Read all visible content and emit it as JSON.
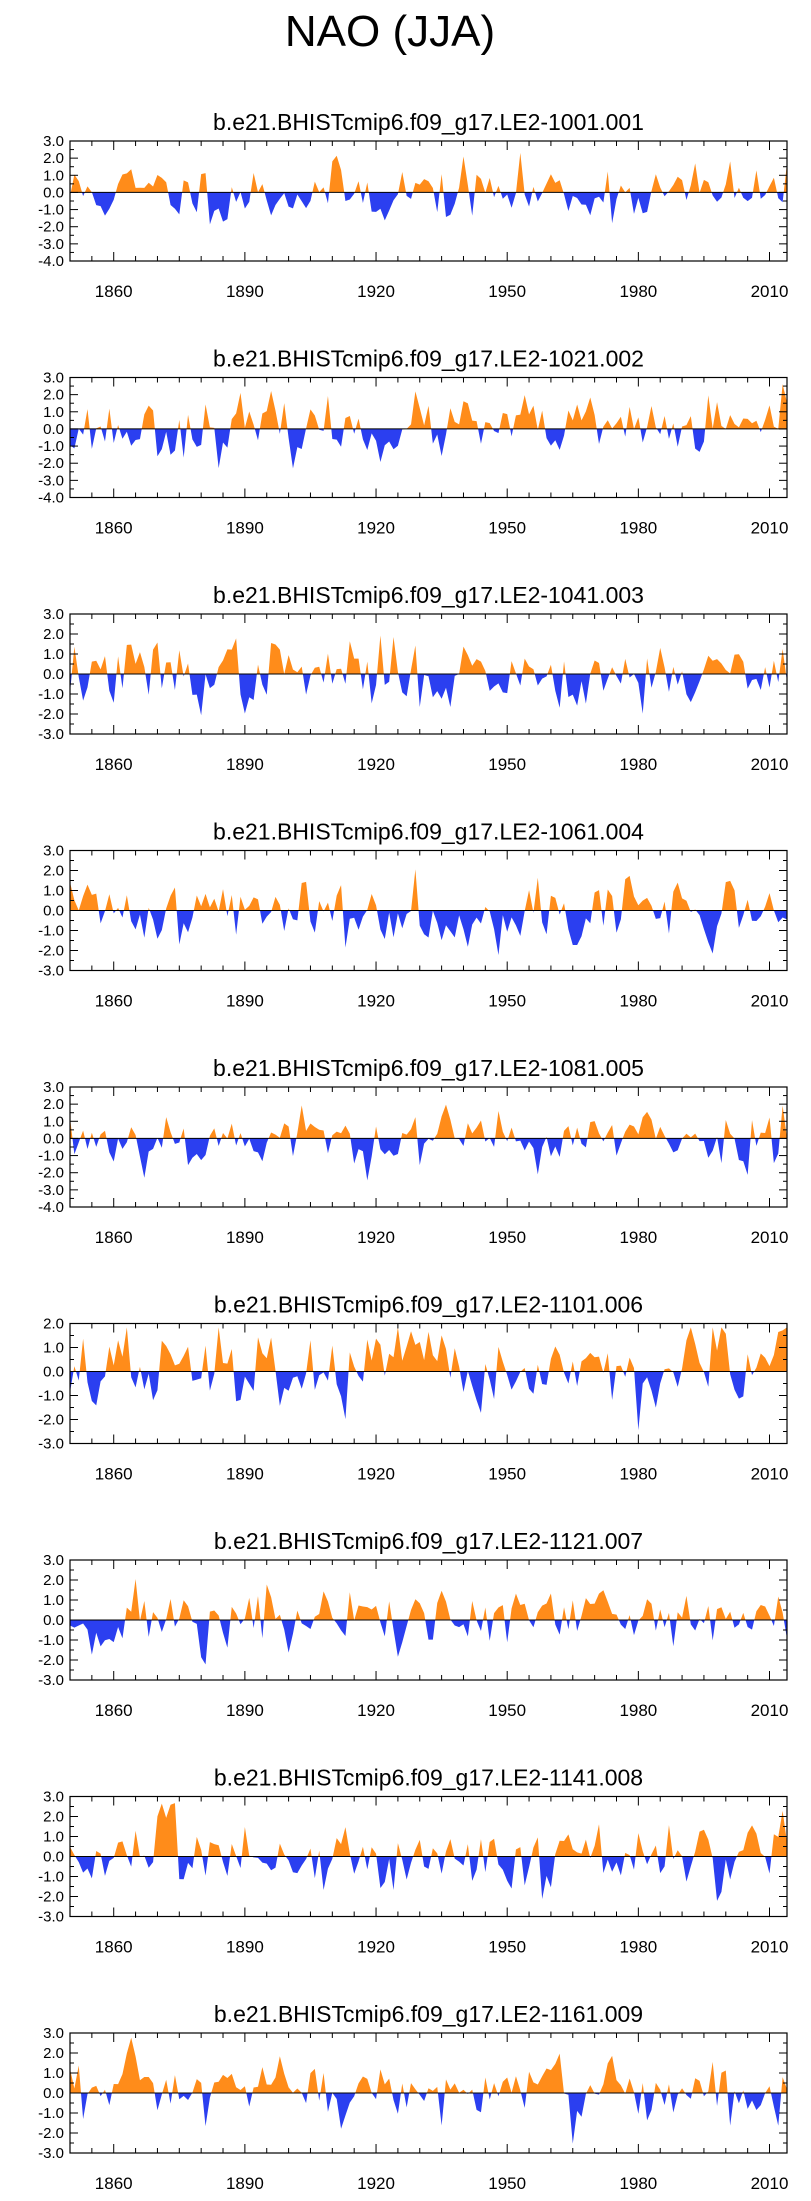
{
  "figure_title": "NAO (JJA)",
  "colors": {
    "positive": "#ff8c1a",
    "negative": "#2b3ff0",
    "axis": "#000000"
  },
  "chart_data": [
    {
      "type": "area",
      "title": "b.e21.BHISTcmip6.f09_g17.LE2-1001.001",
      "ylim": [
        -4.0,
        3.0
      ],
      "yticks": [
        "3.0",
        "2.0",
        "1.0",
        "0.0",
        "-1.0",
        "-2.0",
        "-3.0",
        "-4.0"
      ],
      "xlim": [
        1850,
        2014
      ],
      "xticks": [
        "1860",
        "1890",
        "1920",
        "1950",
        "1980",
        "2010"
      ],
      "x_start": 1850,
      "x_end": 2014,
      "seed": 11
    },
    {
      "type": "area",
      "title": "b.e21.BHISTcmip6.f09_g17.LE2-1021.002",
      "ylim": [
        -4.0,
        3.0
      ],
      "yticks": [
        "3.0",
        "2.0",
        "1.0",
        "0.0",
        "-1.0",
        "-2.0",
        "-3.0",
        "-4.0"
      ],
      "xlim": [
        1850,
        2014
      ],
      "xticks": [
        "1860",
        "1890",
        "1920",
        "1950",
        "1980",
        "2010"
      ],
      "x_start": 1850,
      "x_end": 2014,
      "seed": 23
    },
    {
      "type": "area",
      "title": "b.e21.BHISTcmip6.f09_g17.LE2-1041.003",
      "ylim": [
        -3.0,
        3.0
      ],
      "yticks": [
        "3.0",
        "2.0",
        "1.0",
        "0.0",
        "-1.0",
        "-2.0",
        "-3.0"
      ],
      "xlim": [
        1850,
        2014
      ],
      "xticks": [
        "1860",
        "1890",
        "1920",
        "1950",
        "1980",
        "2010"
      ],
      "x_start": 1850,
      "x_end": 2014,
      "seed": 37
    },
    {
      "type": "area",
      "title": "b.e21.BHISTcmip6.f09_g17.LE2-1061.004",
      "ylim": [
        -3.0,
        3.0
      ],
      "yticks": [
        "3.0",
        "2.0",
        "1.0",
        "0.0",
        "-1.0",
        "-2.0",
        "-3.0"
      ],
      "xlim": [
        1850,
        2014
      ],
      "xticks": [
        "1860",
        "1890",
        "1920",
        "1950",
        "1980",
        "2010"
      ],
      "x_start": 1850,
      "x_end": 2014,
      "seed": 41
    },
    {
      "type": "area",
      "title": "b.e21.BHISTcmip6.f09_g17.LE2-1081.005",
      "ylim": [
        -4.0,
        3.0
      ],
      "yticks": [
        "3.0",
        "2.0",
        "1.0",
        "0.0",
        "-1.0",
        "-2.0",
        "-3.0",
        "-4.0"
      ],
      "xlim": [
        1850,
        2014
      ],
      "xticks": [
        "1860",
        "1890",
        "1920",
        "1950",
        "1980",
        "2010"
      ],
      "x_start": 1850,
      "x_end": 2014,
      "seed": 53
    },
    {
      "type": "area",
      "title": "b.e21.BHISTcmip6.f09_g17.LE2-1101.006",
      "ylim": [
        -3.0,
        2.0
      ],
      "yticks": [
        "2.0",
        "1.0",
        "0.0",
        "-1.0",
        "-2.0",
        "-3.0"
      ],
      "xlim": [
        1850,
        2014
      ],
      "xticks": [
        "1860",
        "1890",
        "1920",
        "1950",
        "1980",
        "2010"
      ],
      "x_start": 1850,
      "x_end": 2014,
      "seed": 67
    },
    {
      "type": "area",
      "title": "b.e21.BHISTcmip6.f09_g17.LE2-1121.007",
      "ylim": [
        -3.0,
        3.0
      ],
      "yticks": [
        "3.0",
        "2.0",
        "1.0",
        "0.0",
        "-1.0",
        "-2.0",
        "-3.0"
      ],
      "xlim": [
        1850,
        2014
      ],
      "xticks": [
        "1860",
        "1890",
        "1920",
        "1950",
        "1980",
        "2010"
      ],
      "x_start": 1850,
      "x_end": 2014,
      "seed": 71
    },
    {
      "type": "area",
      "title": "b.e21.BHISTcmip6.f09_g17.LE2-1141.008",
      "ylim": [
        -3.0,
        3.0
      ],
      "yticks": [
        "3.0",
        "2.0",
        "1.0",
        "0.0",
        "-1.0",
        "-2.0",
        "-3.0"
      ],
      "xlim": [
        1850,
        2014
      ],
      "xticks": [
        "1860",
        "1890",
        "1920",
        "1950",
        "1980",
        "2010"
      ],
      "x_start": 1850,
      "x_end": 2014,
      "seed": 83
    },
    {
      "type": "area",
      "title": "b.e21.BHISTcmip6.f09_g17.LE2-1161.009",
      "ylim": [
        -3.0,
        3.0
      ],
      "yticks": [
        "3.0",
        "2.0",
        "1.0",
        "0.0",
        "-1.0",
        "-2.0",
        "-3.0"
      ],
      "xlim": [
        1850,
        2014
      ],
      "xticks": [
        "1860",
        "1890",
        "1920",
        "1950",
        "1980",
        "2010"
      ],
      "x_start": 1850,
      "x_end": 2014,
      "seed": 97
    }
  ]
}
